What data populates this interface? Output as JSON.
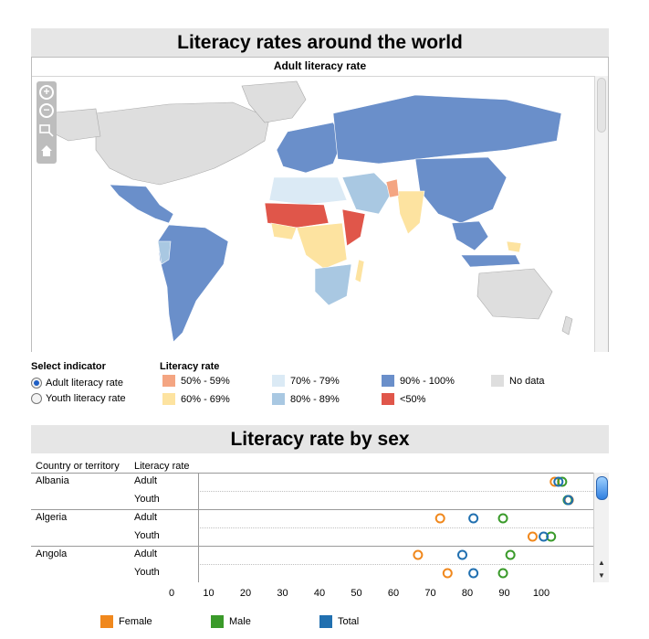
{
  "title": "Literacy rates around the world",
  "map": {
    "subtitle": "Adult literacy rate",
    "controls": {
      "zoom_in": "+",
      "zoom_out": "−"
    }
  },
  "indicator": {
    "header": "Select indicator",
    "options": [
      "Adult literacy rate",
      "Youth literacy rate"
    ],
    "selected": "Adult literacy rate"
  },
  "map_legend": {
    "header": "Literacy rate",
    "items": [
      {
        "label": "50% - 59%",
        "color": "#f4a582"
      },
      {
        "label": "60% - 69%",
        "color": "#fde3a0"
      },
      {
        "label": "70% - 79%",
        "color": "#dbeaf5"
      },
      {
        "label": "80% - 89%",
        "color": "#a9c8e2"
      },
      {
        "label": "90% - 100%",
        "color": "#6a8fca"
      },
      {
        "label": "<50%",
        "color": "#e0564a"
      },
      {
        "label": "No data",
        "color": "#dedede"
      }
    ]
  },
  "sex_title": "Literacy rate by sex",
  "chart_data": {
    "type": "scatter",
    "title": "Literacy rate by sex",
    "columns": [
      "Country or territory",
      "Literacy rate"
    ],
    "x_ticks": [
      "0",
      "10",
      "20",
      "30",
      "40",
      "50",
      "60",
      "70",
      "80",
      "90",
      "100"
    ],
    "xlim": [
      0,
      100
    ],
    "series": [
      {
        "name": "Female",
        "color": "#f0881d"
      },
      {
        "name": "Male",
        "color": "#3a9a2a"
      },
      {
        "name": "Total",
        "color": "#2170b0"
      }
    ],
    "rows": [
      {
        "country": "Albania",
        "type": "Adult",
        "female": 95,
        "male": 97,
        "total": 96
      },
      {
        "country": "",
        "type": "Youth",
        "female": 98.8,
        "male": 98.5,
        "total": 98.7
      },
      {
        "country": "Algeria",
        "type": "Adult",
        "female": 64,
        "male": 81,
        "total": 73
      },
      {
        "country": "",
        "type": "Youth",
        "female": 89,
        "male": 94,
        "total": 92
      },
      {
        "country": "Angola",
        "type": "Adult",
        "female": 58,
        "male": 83,
        "total": 70
      },
      {
        "country": "",
        "type": "Youth",
        "female": 66,
        "male": 81,
        "total": 73
      }
    ]
  }
}
